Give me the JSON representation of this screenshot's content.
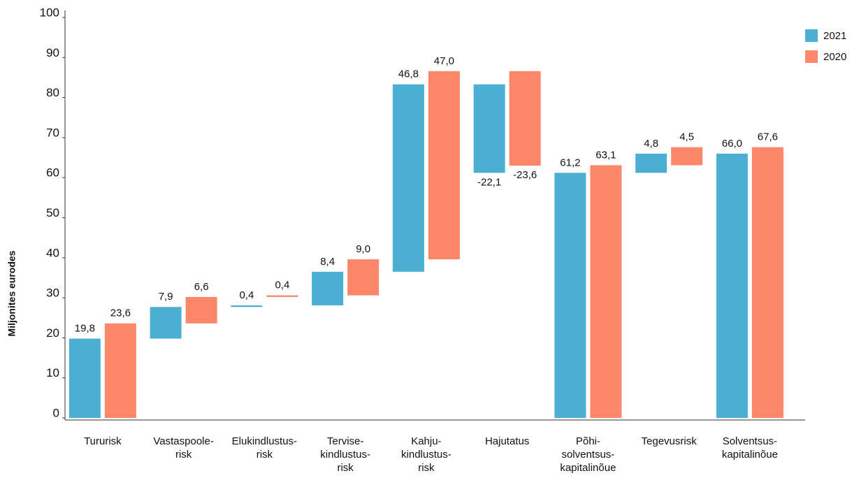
{
  "chart_data": {
    "type": "waterfall",
    "y_label": "Miljonites eurodes",
    "categories": [
      "Tururisk",
      "Vastaspoole-\nrisk",
      "Elukindlustus-\nrisk",
      "Tervise-\nkindlustus-\nrisk",
      "Kahju-\nkindlustus-\nrisk",
      "Hajutatus",
      "Põhi-\nsolventsus-\nkapitalinõue",
      "Tegevusrisk",
      "Solventsus-\nkapitalinõue"
    ],
    "is_total": [
      false,
      false,
      false,
      false,
      false,
      false,
      true,
      false,
      true
    ],
    "series": [
      {
        "name": "2021",
        "color": "#4bafd3",
        "values": [
          19.8,
          7.9,
          0.4,
          8.4,
          46.8,
          -22.1,
          61.2,
          4.8,
          66.0
        ],
        "value_labels": [
          "19,8",
          "7,9",
          "0,4",
          "8,4",
          "46,8",
          "-22,1",
          "61,2",
          "4,8",
          "66,0"
        ]
      },
      {
        "name": "2020",
        "color": "#fe8769",
        "values": [
          23.6,
          6.6,
          0.4,
          9.0,
          47.0,
          -23.6,
          63.1,
          4.5,
          67.6
        ],
        "value_labels": [
          "23,6",
          "6,6",
          "0,4",
          "9,0",
          "47,0",
          "-23,6",
          "63,1",
          "4,5",
          "67,6"
        ]
      }
    ],
    "ylim": [
      0,
      100
    ],
    "yticks": [
      0,
      10,
      20,
      30,
      40,
      50,
      60,
      70,
      80,
      90,
      100
    ],
    "legend": "top-right"
  }
}
